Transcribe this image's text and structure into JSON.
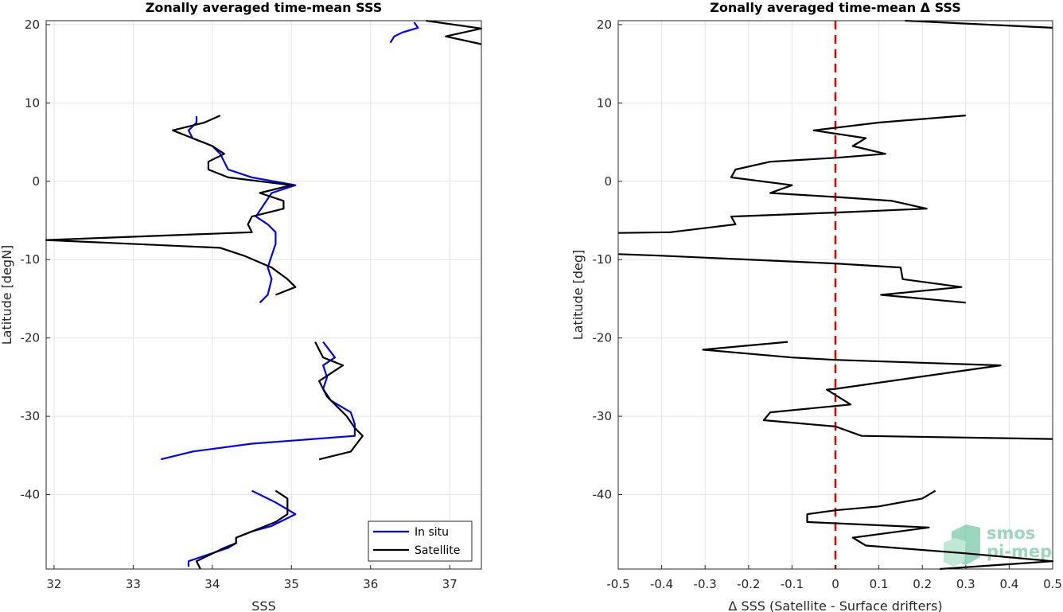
{
  "chart_data": [
    {
      "type": "line",
      "title": "Zonally averaged time-mean SSS",
      "xlabel": "SSS",
      "ylabel": "Latitude [degN]",
      "xlim": [
        31.9,
        37.4
      ],
      "ylim": [
        -49.5,
        20.5
      ],
      "xticks": [
        32,
        33,
        34,
        35,
        36,
        37
      ],
      "xtick_labels": [
        "32",
        "33",
        "34",
        "35",
        "36",
        "37"
      ],
      "yticks": [
        20,
        10,
        0,
        -10,
        -20,
        -30,
        -40
      ],
      "ytick_labels": [
        "20",
        "10",
        "0",
        "-10",
        "-20",
        "-30",
        "-40"
      ],
      "grid": true,
      "legend": {
        "position": "bottom-right",
        "entries": [
          "In situ",
          "Satellite"
        ]
      },
      "series": [
        {
          "name": "In situ",
          "color": "#0000ff",
          "segments": [
            [
              [
                36.25,
                17.7
              ],
              [
                36.3,
                18.5
              ],
              [
                36.4,
                19.0
              ],
              [
                36.6,
                19.6
              ],
              [
                36.55,
                20.3
              ]
            ],
            [
              [
                33.8,
                8.3
              ],
              [
                33.8,
                7.5
              ],
              [
                33.7,
                6.5
              ],
              [
                33.75,
                5.5
              ],
              [
                34.0,
                4.5
              ],
              [
                34.1,
                3.5
              ],
              [
                34.15,
                2.5
              ],
              [
                34.2,
                1.5
              ],
              [
                34.5,
                0.5
              ],
              [
                35.05,
                -0.5
              ],
              [
                34.75,
                -1.5
              ],
              [
                34.65,
                -3.0
              ],
              [
                34.55,
                -4.5
              ],
              [
                34.7,
                -5.5
              ],
              [
                34.8,
                -6.5
              ],
              [
                34.8,
                -8.0
              ],
              [
                34.75,
                -9.5
              ],
              [
                34.7,
                -11.0
              ],
              [
                34.75,
                -12.5
              ],
              [
                34.7,
                -14.5
              ],
              [
                34.6,
                -15.5
              ]
            ],
            [
              [
                35.4,
                -20.5
              ],
              [
                35.55,
                -22.5
              ],
              [
                35.4,
                -23.5
              ],
              [
                35.45,
                -25.0
              ],
              [
                35.4,
                -26.5
              ],
              [
                35.5,
                -28.0
              ],
              [
                35.75,
                -29.5
              ],
              [
                35.8,
                -31.0
              ],
              [
                35.8,
                -32.5
              ],
              [
                34.5,
                -33.5
              ],
              [
                33.75,
                -34.5
              ],
              [
                33.35,
                -35.5
              ]
            ],
            [
              [
                34.5,
                -39.5
              ],
              [
                34.8,
                -41.0
              ],
              [
                35.05,
                -42.5
              ],
              [
                34.75,
                -44.0
              ],
              [
                34.5,
                -44.7
              ],
              [
                34.3,
                -45.5
              ],
              [
                34.3,
                -46.2
              ],
              [
                34.2,
                -46.8
              ],
              [
                33.7,
                -48.5
              ],
              [
                33.7,
                -49.2
              ]
            ]
          ]
        },
        {
          "name": "Satellite",
          "color": "#000000",
          "segments": [
            [
              [
                36.7,
                20.5
              ],
              [
                37.4,
                19.5
              ],
              [
                36.95,
                18.5
              ],
              [
                37.4,
                17.5
              ]
            ],
            [
              [
                34.1,
                8.4
              ],
              [
                33.9,
                7.5
              ],
              [
                33.5,
                6.5
              ],
              [
                33.75,
                5.5
              ],
              [
                34.0,
                4.5
              ],
              [
                34.15,
                3.5
              ],
              [
                33.95,
                2.5
              ],
              [
                33.95,
                1.5
              ],
              [
                34.2,
                0.5
              ],
              [
                35.0,
                -0.5
              ],
              [
                34.6,
                -1.5
              ],
              [
                34.9,
                -2.5
              ],
              [
                34.9,
                -3.5
              ],
              [
                34.5,
                -4.5
              ],
              [
                34.45,
                -5.5
              ],
              [
                34.5,
                -6.5
              ],
              [
                31.9,
                -7.5
              ],
              [
                34.1,
                -8.5
              ],
              [
                34.4,
                -9.5
              ],
              [
                34.75,
                -11.0
              ],
              [
                34.95,
                -12.5
              ],
              [
                35.05,
                -13.5
              ],
              [
                34.8,
                -14.5
              ]
            ],
            [
              [
                35.3,
                -20.5
              ],
              [
                35.4,
                -22.5
              ],
              [
                35.65,
                -23.5
              ],
              [
                35.35,
                -25.5
              ],
              [
                35.45,
                -27.5
              ],
              [
                35.55,
                -28.5
              ],
              [
                35.7,
                -30.0
              ],
              [
                35.8,
                -31.5
              ],
              [
                35.9,
                -32.5
              ],
              [
                35.75,
                -34.5
              ],
              [
                35.35,
                -35.5
              ]
            ],
            [
              [
                34.8,
                -39.5
              ],
              [
                34.95,
                -40.5
              ],
              [
                34.95,
                -42.5
              ],
              [
                34.8,
                -43.5
              ],
              [
                34.55,
                -44.5
              ],
              [
                34.3,
                -45.5
              ],
              [
                34.3,
                -46.2
              ],
              [
                34.15,
                -46.8
              ],
              [
                33.8,
                -48.5
              ],
              [
                33.85,
                -49.5
              ]
            ]
          ]
        }
      ]
    },
    {
      "type": "line",
      "title": "Zonally averaged time-mean Δ SSS",
      "xlabel": "Δ SSS (Satellite - Surface drifters)",
      "ylabel": "Latitude [deg]",
      "xlim": [
        -0.5,
        0.5
      ],
      "ylim": [
        -49.5,
        20.5
      ],
      "xticks": [
        -0.5,
        -0.4,
        -0.3,
        -0.2,
        -0.1,
        0,
        0.1,
        0.2,
        0.3,
        0.4,
        0.5
      ],
      "xtick_labels": [
        "-0.5",
        "-0.4",
        "-0.3",
        "-0.2",
        "-0.1",
        "0",
        "0.1",
        "0.2",
        "0.3",
        "0.4",
        "0.5"
      ],
      "yticks": [
        20,
        10,
        0,
        -10,
        -20,
        -30,
        -40
      ],
      "ytick_labels": [
        "20",
        "10",
        "0",
        "-10",
        "-20",
        "-30",
        "-40"
      ],
      "grid": true,
      "reference_line": {
        "x": 0,
        "color": "#e60000",
        "style": "dashed"
      },
      "series": [
        {
          "color": "#000000",
          "segments": [
            [
              [
                0.16,
                20.5
              ],
              [
                0.5,
                19.6
              ]
            ],
            [
              [
                0.3,
                8.4
              ],
              [
                0.1,
                7.5
              ],
              [
                -0.05,
                6.5
              ],
              [
                0.07,
                5.5
              ],
              [
                0.04,
                4.5
              ],
              [
                0.115,
                3.5
              ],
              [
                0.0,
                3.0
              ],
              [
                -0.15,
                2.5
              ],
              [
                -0.23,
                1.5
              ],
              [
                -0.24,
                0.5
              ],
              [
                -0.1,
                -0.5
              ],
              [
                -0.15,
                -1.5
              ],
              [
                0.0,
                -2.0
              ],
              [
                0.13,
                -2.5
              ],
              [
                0.21,
                -3.5
              ],
              [
                0.0,
                -4.0
              ],
              [
                -0.24,
                -4.5
              ],
              [
                -0.23,
                -5.5
              ],
              [
                -0.38,
                -6.5
              ],
              [
                -0.5,
                -6.6
              ]
            ],
            [
              [
                -0.5,
                -9.3
              ],
              [
                -0.4,
                -9.5
              ],
              [
                0.0,
                -10.5
              ],
              [
                0.15,
                -11.0
              ],
              [
                0.155,
                -12.5
              ],
              [
                0.29,
                -13.5
              ],
              [
                0.105,
                -14.5
              ],
              [
                0.3,
                -15.5
              ]
            ],
            [
              [
                -0.11,
                -20.5
              ],
              [
                -0.305,
                -21.5
              ],
              [
                -0.1,
                -22.5
              ],
              [
                0.0,
                -22.8
              ],
              [
                0.38,
                -23.5
              ],
              [
                0.0,
                -26.5
              ],
              [
                -0.02,
                -26.6
              ],
              [
                0.035,
                -28.5
              ],
              [
                -0.15,
                -29.5
              ],
              [
                -0.165,
                -30.5
              ],
              [
                0.0,
                -31.3
              ],
              [
                0.06,
                -32.5
              ],
              [
                0.5,
                -32.9
              ]
            ],
            [
              [
                0.23,
                -39.5
              ],
              [
                0.2,
                -40.5
              ],
              [
                0.1,
                -41.5
              ],
              [
                0.0,
                -42.0
              ],
              [
                -0.065,
                -42.5
              ],
              [
                -0.065,
                -43.5
              ],
              [
                0.215,
                -44.2
              ],
              [
                0.04,
                -45.5
              ],
              [
                0.07,
                -46.5
              ],
              [
                0.3,
                -47.5
              ],
              [
                0.5,
                -48.5
              ],
              [
                0.24,
                -49.5
              ]
            ]
          ]
        }
      ]
    }
  ],
  "logo": {
    "text_top": "smos",
    "text_bottom": "pi-mep"
  }
}
